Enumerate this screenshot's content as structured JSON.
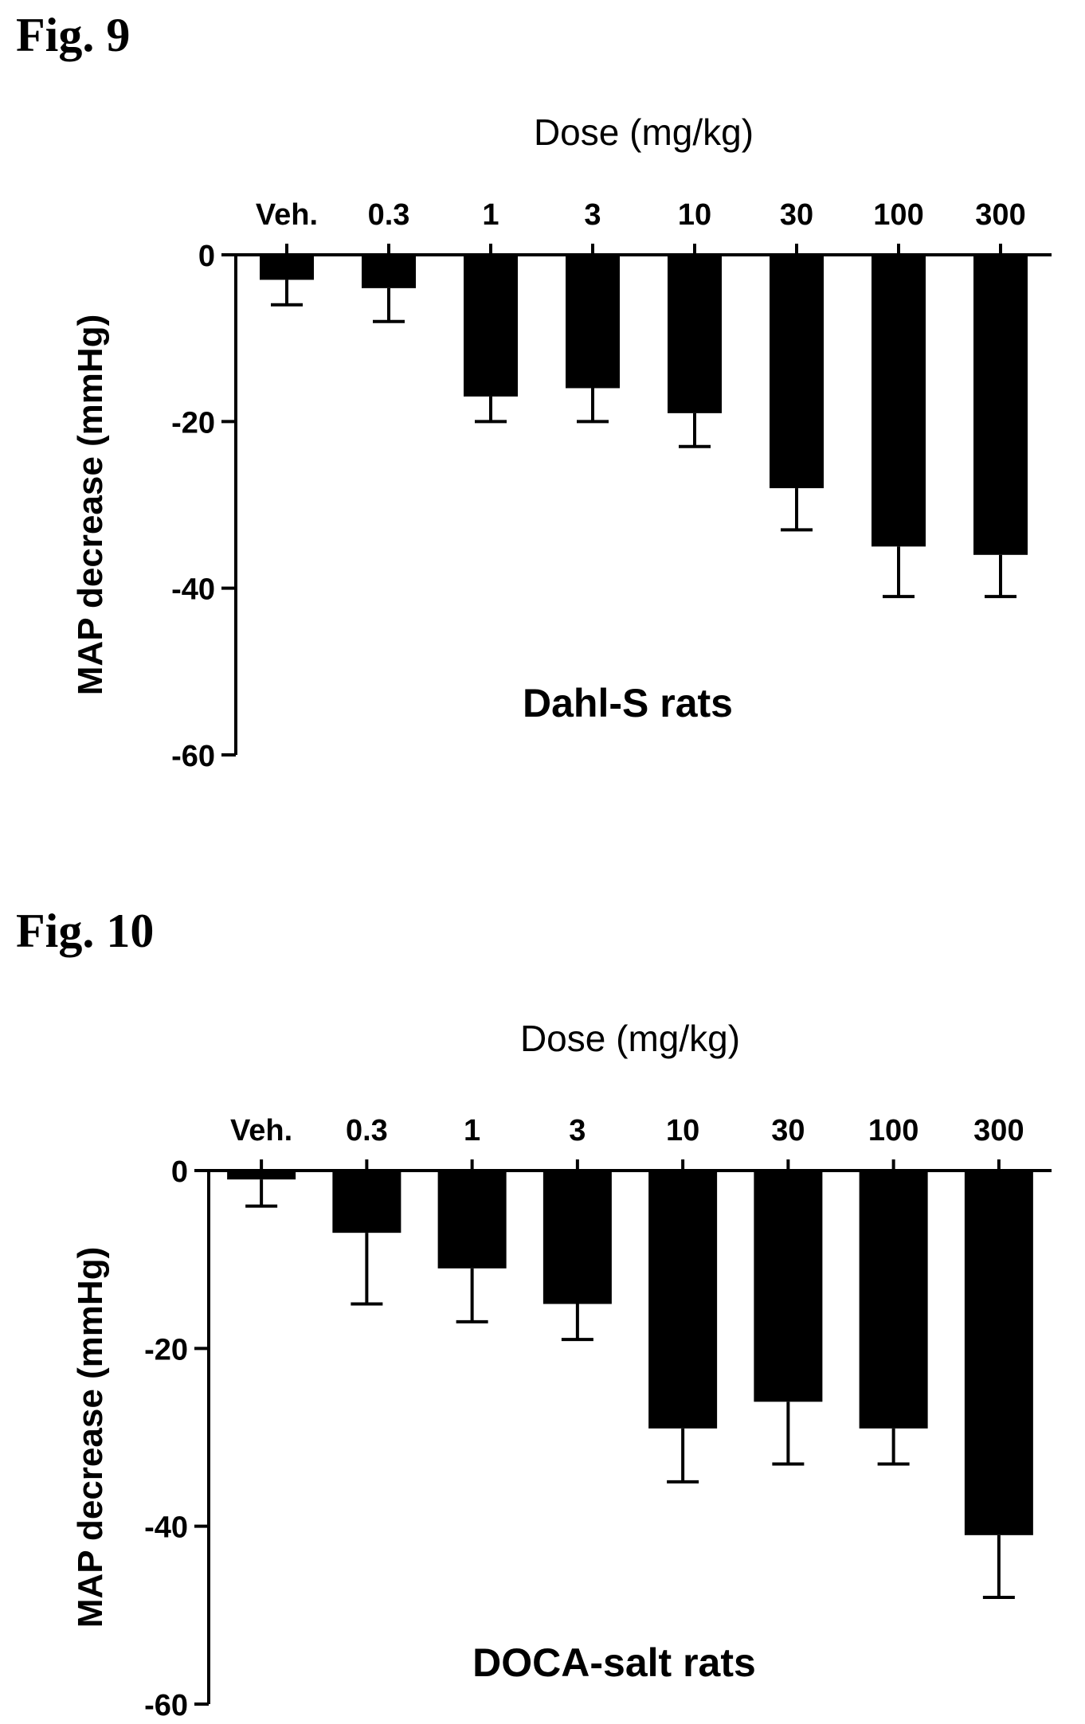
{
  "figures": [
    {
      "label": "Fig. 9"
    },
    {
      "label": "Fig. 10"
    }
  ],
  "chart_data": [
    {
      "type": "bar",
      "title": "Dose (mg/kg)",
      "annotation": "Dahl-S rats",
      "ylabel": "MAP decrease (mmHg)",
      "xlabel": "",
      "categories": [
        "Veh.",
        "0.3",
        "1",
        "3",
        "10",
        "30",
        "100",
        "300"
      ],
      "values": [
        -3,
        -4,
        -17,
        -16,
        -19,
        -28,
        -35,
        -36
      ],
      "errors": [
        3,
        4,
        3,
        4,
        4,
        5,
        6,
        5
      ],
      "ylim": [
        -60,
        0
      ],
      "yticks": [
        0,
        -20,
        -40,
        -60
      ],
      "bar_color": "#000000",
      "grid": false
    },
    {
      "type": "bar",
      "title": "Dose (mg/kg)",
      "annotation": "DOCA-salt rats",
      "ylabel": "MAP decrease (mmHg)",
      "xlabel": "",
      "categories": [
        "Veh.",
        "0.3",
        "1",
        "3",
        "10",
        "30",
        "100",
        "300"
      ],
      "values": [
        -1,
        -7,
        -11,
        -15,
        -29,
        -26,
        -29,
        -41
      ],
      "errors": [
        3,
        8,
        6,
        4,
        6,
        7,
        4,
        7
      ],
      "ylim": [
        -60,
        0
      ],
      "yticks": [
        0,
        -20,
        -40,
        -60
      ],
      "bar_color": "#000000",
      "grid": false
    }
  ]
}
